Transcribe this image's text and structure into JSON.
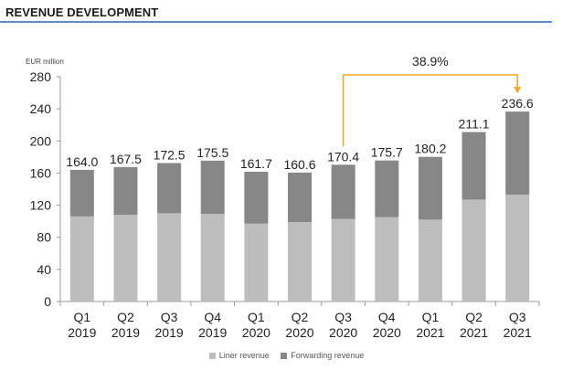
{
  "header": {
    "title": "REVENUE DEVELOPMENT"
  },
  "colors": {
    "accent_rule": "#5b8fc9",
    "liner": "#bdbdbd",
    "forwarding": "#878787",
    "growth_arrow": "#f5a623"
  },
  "chart_data": {
    "type": "bar",
    "stacked": true,
    "title": "",
    "ylabel": "EUR million",
    "ylim": [
      0,
      280
    ],
    "yticks": [
      0,
      40,
      80,
      120,
      160,
      200,
      240,
      280
    ],
    "grid": false,
    "legend_position": "bottom",
    "categories": [
      [
        "Q1",
        "2019"
      ],
      [
        "Q2",
        "2019"
      ],
      [
        "Q3",
        "2019"
      ],
      [
        "Q4",
        "2019"
      ],
      [
        "Q1",
        "2020"
      ],
      [
        "Q2",
        "2020"
      ],
      [
        "Q3",
        "2020"
      ],
      [
        "Q4",
        "2020"
      ],
      [
        "Q1",
        "2021"
      ],
      [
        "Q2",
        "2021"
      ],
      [
        "Q3",
        "2021"
      ]
    ],
    "series": [
      {
        "name": "Liner revenue",
        "color": "#bdbdbd",
        "values": [
          106,
          108,
          110,
          109,
          97,
          99,
          103,
          105,
          102,
          127,
          133
        ]
      },
      {
        "name": "Forwarding revenue",
        "color": "#878787",
        "values": [
          58,
          59.5,
          62.5,
          66.5,
          64.7,
          61.6,
          67.4,
          70.7,
          78.2,
          84.1,
          103.6
        ]
      }
    ],
    "totals": [
      "164.0",
      "167.5",
      "172.5",
      "175.5",
      "161.7",
      "160.6",
      "170.4",
      "175.7",
      "180.2",
      "211.1",
      "236.6"
    ],
    "annotation": {
      "text": "38.9%",
      "from_index": 6,
      "to_index": 10
    }
  }
}
